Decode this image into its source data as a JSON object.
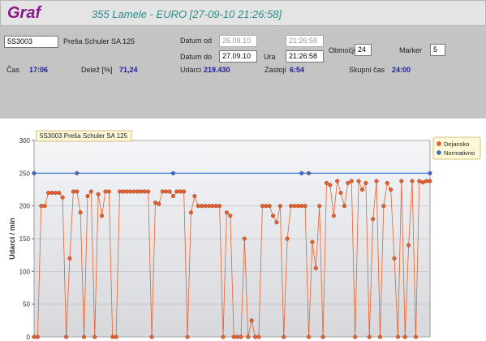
{
  "header": {
    "title": "Graf",
    "subtitle": "355 Lamele - EURO [27-09-10 21:26:58]"
  },
  "form": {
    "machine_code": "5S3003",
    "machine_name": "Preša Schuler SA 125",
    "date_from_label": "Datum od",
    "date_from": "26.09.10",
    "time_from": "21:26:58",
    "date_to_label": "Datum do",
    "date_to": "27.09.10",
    "time_label": "Ura",
    "time_to": "21:26:58",
    "range_label": "Območje [ur]",
    "range": "24",
    "marker_label": "Marker",
    "marker": "5"
  },
  "stats": [
    {
      "label": "Čas",
      "value": "17:06"
    },
    {
      "label": "Delež [%]",
      "value": "71,24"
    },
    {
      "label": "Udarci",
      "value": "219.430"
    },
    {
      "label": "Zastoji",
      "value": "6:54"
    },
    {
      "label": "Skupni čas",
      "value": "24:00"
    }
  ],
  "chart_data": {
    "type": "line",
    "title": "5S3003 Preša Schuler SA 125",
    "y_label": "Udarci / min",
    "ylim": [
      0,
      300
    ],
    "yticks": [
      0,
      50,
      100,
      150,
      200,
      250,
      300
    ],
    "xlim": [
      0,
      111
    ],
    "grid": true,
    "legend": "upper right",
    "series": [
      {
        "name": "Dejansko",
        "color": "#e8602c",
        "x": [
          0,
          1,
          2,
          3,
          4,
          5,
          6,
          7,
          8,
          9,
          10,
          11,
          12,
          13,
          14,
          15,
          16,
          17,
          18,
          19,
          20,
          21,
          22,
          23,
          24,
          25,
          26,
          27,
          28,
          29,
          30,
          31,
          32,
          33,
          34,
          35,
          36,
          37,
          38,
          39,
          40,
          41,
          42,
          43,
          44,
          45,
          46,
          47,
          48,
          49,
          50,
          51,
          52,
          53,
          54,
          55,
          56,
          57,
          58,
          59,
          60,
          61,
          62,
          63,
          64,
          65,
          66,
          67,
          68,
          69,
          70,
          71,
          72,
          73,
          74,
          75,
          76,
          77,
          78,
          79,
          80,
          81,
          82,
          83,
          84,
          85,
          86,
          87,
          88,
          89,
          90,
          91,
          92,
          93,
          94,
          95,
          96,
          97,
          98,
          99,
          100,
          101,
          102,
          103,
          104,
          105,
          106,
          107,
          108,
          109,
          110,
          111
        ],
        "values": [
          0,
          0,
          200,
          200,
          220,
          220,
          220,
          220,
          213,
          0,
          120,
          222,
          222,
          190,
          0,
          215,
          222,
          0,
          218,
          185,
          222,
          222,
          0,
          0,
          222,
          222,
          222,
          222,
          222,
          222,
          222,
          222,
          222,
          0,
          205,
          203,
          222,
          222,
          222,
          215,
          222,
          222,
          222,
          0,
          190,
          215,
          200,
          200,
          200,
          200,
          200,
          200,
          200,
          0,
          190,
          185,
          0,
          0,
          0,
          150,
          0,
          25,
          0,
          0,
          200,
          200,
          200,
          185,
          175,
          200,
          0,
          150,
          200,
          200,
          200,
          200,
          200,
          0,
          145,
          105,
          200,
          0,
          235,
          232,
          185,
          238,
          220,
          200,
          235,
          238,
          0,
          238,
          225,
          235,
          0,
          180,
          238,
          0,
          200,
          235,
          225,
          120,
          0,
          238,
          0,
          140,
          238,
          0,
          238,
          236,
          238,
          238
        ]
      },
      {
        "name": "Normativno",
        "color": "#2f6fd6",
        "x": [
          0,
          12,
          39,
          75,
          77,
          111
        ],
        "values": [
          250,
          250,
          250,
          250,
          250,
          250
        ]
      }
    ]
  }
}
